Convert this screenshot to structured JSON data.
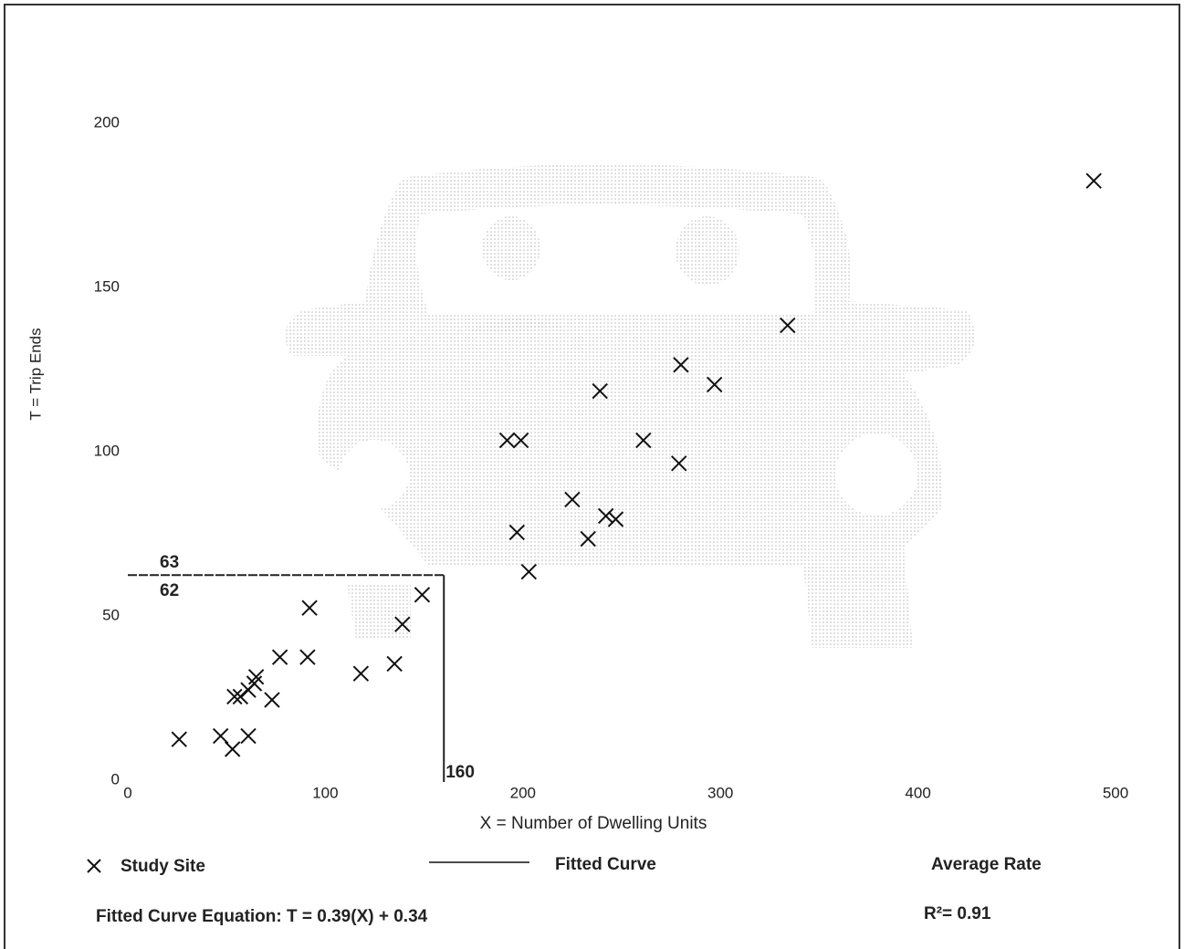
{
  "chart_data": {
    "type": "scatter",
    "x_label": "X = Number of Dwelling Units",
    "y_label": "T = Trip Ends",
    "xlim": [
      0,
      500
    ],
    "ylim": [
      0,
      200
    ],
    "xticks": [
      0,
      100,
      200,
      300,
      400,
      500
    ],
    "yticks": [
      0,
      50,
      100,
      150,
      200
    ],
    "grid": false,
    "series": [
      {
        "name": "Study Site",
        "color": "#111111",
        "x": [
          489,
          334,
          280,
          297,
          239,
          192,
          199,
          261,
          279,
          225,
          197,
          242,
          247,
          233,
          203,
          149,
          92,
          139,
          77,
          91,
          135,
          118,
          65,
          54,
          57,
          61,
          64,
          73,
          26,
          47,
          61,
          53
        ],
        "values": [
          183,
          139,
          127,
          121,
          119,
          104,
          104,
          104,
          97,
          86,
          76,
          81,
          80,
          74,
          64,
          57,
          53,
          48,
          38,
          38,
          36,
          33,
          32,
          26,
          26,
          28,
          30,
          25,
          13,
          14,
          14,
          10
        ]
      }
    ],
    "legend": [
      "Fitted Curve",
      "Average Rate"
    ],
    "reference_line": {
      "x": 160,
      "y": 63,
      "labels": [
        "63",
        "62",
        "160"
      ]
    },
    "equation": "Fitted Curve Equation: T = 0.39(X) + 0.34",
    "r_squared": "R²= 0.91"
  }
}
